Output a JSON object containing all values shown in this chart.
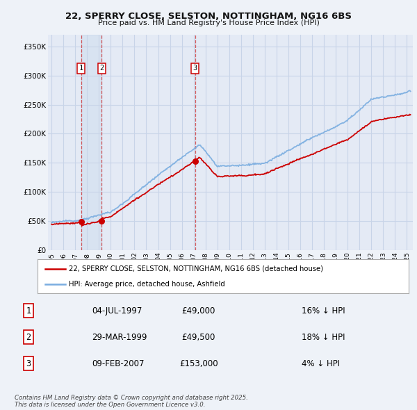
{
  "title_line1": "22, SPERRY CLOSE, SELSTON, NOTTINGHAM, NG16 6BS",
  "title_line2": "Price paid vs. HM Land Registry's House Price Index (HPI)",
  "bg_color": "#eef2f8",
  "plot_bg_color": "#e4eaf5",
  "grid_color": "#d0d8e8",
  "sale_color": "#cc0000",
  "hpi_color": "#7aade0",
  "sale_dates": [
    1997.5,
    1999.24,
    2007.11
  ],
  "sale_prices": [
    49000,
    49500,
    153000
  ],
  "sale_labels": [
    "1",
    "2",
    "3"
  ],
  "legend_sale": "22, SPERRY CLOSE, SELSTON, NOTTINGHAM, NG16 6BS (detached house)",
  "legend_hpi": "HPI: Average price, detached house, Ashfield",
  "table_entries": [
    {
      "num": "1",
      "date": "04-JUL-1997",
      "price": "£49,000",
      "hpi": "16% ↓ HPI"
    },
    {
      "num": "2",
      "date": "29-MAR-1999",
      "price": "£49,500",
      "hpi": "18% ↓ HPI"
    },
    {
      "num": "3",
      "date": "09-FEB-2007",
      "price": "£153,000",
      "hpi": "4% ↓ HPI"
    }
  ],
  "footnote": "Contains HM Land Registry data © Crown copyright and database right 2025.\nThis data is licensed under the Open Government Licence v3.0.",
  "ylim": [
    0,
    370000
  ],
  "yticks": [
    0,
    50000,
    100000,
    150000,
    200000,
    250000,
    300000,
    350000
  ],
  "ytick_labels": [
    "£0",
    "£50K",
    "£100K",
    "£150K",
    "£200K",
    "£250K",
    "£300K",
    "£350K"
  ],
  "xlim_start": 1994.7,
  "xlim_end": 2025.5,
  "xtick_years": [
    1995,
    1996,
    1997,
    1998,
    1999,
    2000,
    2001,
    2002,
    2003,
    2004,
    2005,
    2006,
    2007,
    2008,
    2009,
    2010,
    2011,
    2012,
    2013,
    2014,
    2015,
    2016,
    2017,
    2018,
    2019,
    2020,
    2021,
    2022,
    2023,
    2024,
    2025
  ]
}
